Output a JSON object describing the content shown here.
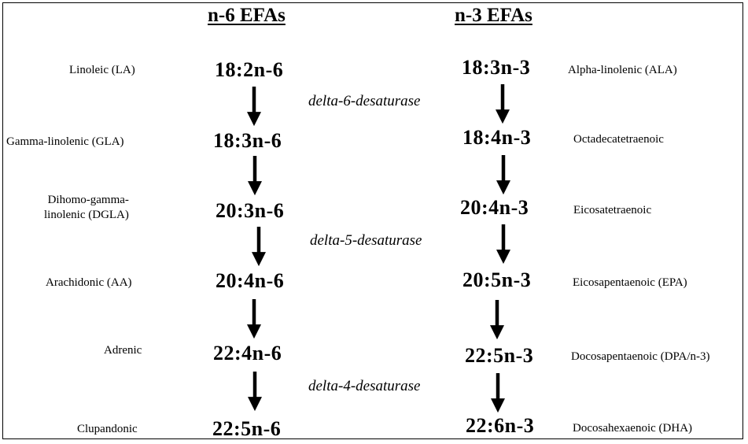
{
  "headers": {
    "n6": "n-6 EFAs",
    "n3": "n-3 EFAs"
  },
  "n6": [
    {
      "name": "Linoleic (LA)",
      "formula": "18:2n-6"
    },
    {
      "name": "Gamma-linolenic (GLA)",
      "formula": "18:3n-6"
    },
    {
      "name_line1": "Dihomo-gamma-",
      "name_line2": "linolenic (DGLA)",
      "formula": "20:3n-6"
    },
    {
      "name": "Arachidonic (AA)",
      "formula": "20:4n-6"
    },
    {
      "name": "Adrenic",
      "formula": "22:4n-6"
    },
    {
      "name": "Clupandonic",
      "formula": "22:5n-6"
    }
  ],
  "n3": [
    {
      "name": "Alpha-linolenic (ALA)",
      "formula": "18:3n-3"
    },
    {
      "name": "Octadecatetraenoic",
      "formula": "18:4n-3"
    },
    {
      "name": "Eicosatetraenoic",
      "formula": "20:4n-3"
    },
    {
      "name": "Eicosapentaenoic (EPA)",
      "formula": "20:5n-3"
    },
    {
      "name": "Docosapentaenoic (DPA/n-3)",
      "formula": "22:5n-3"
    },
    {
      "name": "Docosahexaenoic (DHA)",
      "formula": "22:6n-3"
    }
  ],
  "enzymes": [
    "delta-6-desaturase",
    "delta-5-desaturase",
    "delta-4-desaturase"
  ],
  "colors": {
    "ink": "#000000",
    "background": "#ffffff"
  }
}
